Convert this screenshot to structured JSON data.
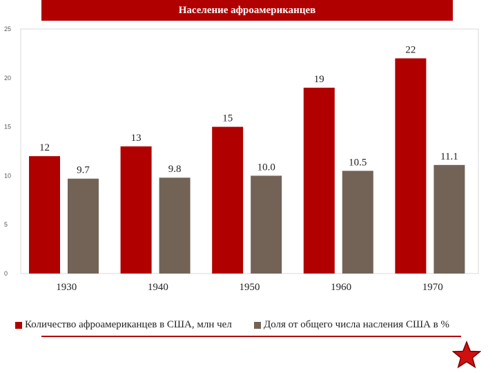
{
  "chart_data": {
    "type": "bar",
    "title": "Население афроамериканцев",
    "categories": [
      "1930",
      "1940",
      "1950",
      "1960",
      "1970"
    ],
    "series": [
      {
        "name": "Количество афроамериканцев в США, млн чел",
        "values": [
          12,
          13,
          15,
          19,
          22
        ],
        "labels": [
          "12",
          "13",
          "15",
          "19",
          "22"
        ],
        "color": "#b10000"
      },
      {
        "name": "Доля от общего числа насления США в %",
        "values": [
          9.7,
          9.8,
          10.0,
          10.5,
          11.1
        ],
        "labels": [
          "9.7",
          "9.8",
          "10.0",
          "10.5",
          "11.1"
        ],
        "color": "#736357"
      }
    ],
    "y_ticks": [
      "0",
      "5",
      "10",
      "15",
      "20",
      "25"
    ],
    "ylim": [
      0,
      25
    ],
    "grid": false,
    "legend_position": "bottom"
  },
  "decor": {
    "accent": "#b10000",
    "icon": "star-icon"
  }
}
